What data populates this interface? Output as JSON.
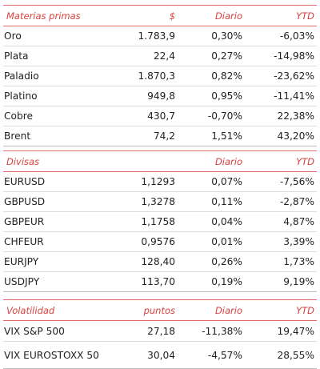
{
  "materias_primas": {
    "headers": [
      "Materias primas",
      "$",
      "Diario",
      "YTD"
    ],
    "rows": [
      {
        "name": "Oro",
        "value": "1.783,9",
        "daily": "0,30%",
        "ytd": "-6,03%"
      },
      {
        "name": "Plata",
        "value": "22,4",
        "daily": "0,27%",
        "ytd": "-14,98%"
      },
      {
        "name": "Paladio",
        "value": "1.870,3",
        "daily": "0,82%",
        "ytd": "-23,62%"
      },
      {
        "name": "Platino",
        "value": "949,8",
        "daily": "0,95%",
        "ytd": "-11,41%"
      },
      {
        "name": "Cobre",
        "value": "430,7",
        "daily": "-0,70%",
        "ytd": "22,38%"
      },
      {
        "name": "Brent",
        "value": "74,2",
        "daily": "1,51%",
        "ytd": "43,20%"
      }
    ]
  },
  "divisas": {
    "headers": [
      "Divisas",
      "",
      "Diario",
      "YTD"
    ],
    "rows": [
      {
        "name": "EURUSD",
        "value": "1,1293",
        "daily": "0,07%",
        "ytd": "-7,56%"
      },
      {
        "name": "GBPUSD",
        "value": "1,3278",
        "daily": "0,11%",
        "ytd": "-2,87%"
      },
      {
        "name": "GBPEUR",
        "value": "1,1758",
        "daily": "0,04%",
        "ytd": "4,87%"
      },
      {
        "name": "CHFEUR",
        "value": "0,9576",
        "daily": "0,01%",
        "ytd": "3,39%"
      },
      {
        "name": "EURJPY",
        "value": "128,40",
        "daily": "0,26%",
        "ytd": "1,73%"
      },
      {
        "name": "USDJPY",
        "value": "113,70",
        "daily": "0,19%",
        "ytd": "9,19%"
      }
    ]
  },
  "volatilidad": {
    "headers": [
      "Volatilidad",
      "puntos",
      "Diario",
      "YTD"
    ],
    "rows": [
      {
        "name": "VIX S&P 500",
        "value": "27,18",
        "daily": "-11,38%",
        "ytd": "19,47%"
      },
      {
        "name": "VIX EUROSTOXX 50",
        "value": "30,04",
        "daily": "-4,57%",
        "ytd": "28,55%"
      }
    ]
  },
  "colors": {
    "header_red": "#d8413e",
    "positive_green": "#3c9a2b",
    "negative_red": "#e0302c"
  }
}
